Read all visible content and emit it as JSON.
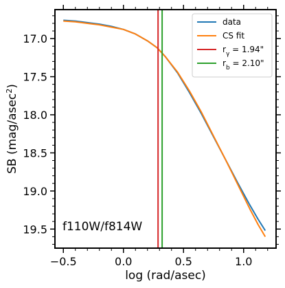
{
  "chart_data": {
    "type": "line",
    "title": "",
    "xlabel": "log (rad/asec)",
    "ylabel_main": "SB (mag/asec",
    "ylabel_sup": "2",
    "ylabel_close": ")",
    "xlim": [
      -0.57,
      1.27
    ],
    "ylim": [
      19.75,
      16.62
    ],
    "y_inverted": true,
    "grid": false,
    "legend_position": "top-right",
    "x_ticks": [
      -0.5,
      0.0,
      0.5,
      1.0
    ],
    "x_tick_labels": [
      "−0.5",
      "0.0",
      "0.5",
      "1.0"
    ],
    "y_ticks": [
      17.0,
      17.5,
      18.0,
      18.5,
      19.0,
      19.5
    ],
    "y_tick_labels": [
      "17.0",
      "17.5",
      "18.0",
      "18.5",
      "19.0",
      "19.5"
    ],
    "annotation": "f110W/f814W",
    "series": [
      {
        "name": "data",
        "color": "#1f77b4",
        "x": [
          -0.5,
          -0.4,
          -0.3,
          -0.2,
          -0.1,
          0.0,
          0.1,
          0.2,
          0.28,
          0.35,
          0.45,
          0.55,
          0.65,
          0.75,
          0.85,
          0.95,
          1.05,
          1.12,
          1.18
        ],
        "y": [
          16.76,
          16.77,
          16.79,
          16.81,
          16.84,
          16.88,
          16.94,
          17.03,
          17.12,
          17.24,
          17.45,
          17.71,
          17.99,
          18.29,
          18.59,
          18.89,
          19.18,
          19.37,
          19.52
        ]
      },
      {
        "name": "CS fit",
        "color": "#ff7f0e",
        "x": [
          -0.5,
          -0.4,
          -0.3,
          -0.2,
          -0.1,
          0.0,
          0.1,
          0.2,
          0.28,
          0.35,
          0.45,
          0.55,
          0.65,
          0.75,
          0.85,
          0.95,
          1.05,
          1.12,
          1.18
        ],
        "y": [
          16.77,
          16.78,
          16.8,
          16.82,
          16.85,
          16.88,
          16.94,
          17.03,
          17.12,
          17.24,
          17.44,
          17.69,
          17.97,
          18.28,
          18.59,
          18.91,
          19.23,
          19.44,
          19.6
        ]
      }
    ],
    "vlines": [
      {
        "name": "r_gamma",
        "label_prefix": "r",
        "label_sub": "γ",
        "label_value": " = 1.94\"",
        "x": 0.288,
        "color": "#d62728"
      },
      {
        "name": "r_b",
        "label_prefix": "r",
        "label_sub": "b",
        "label_value": " = 2.10\"",
        "x": 0.322,
        "color": "#2ca02c"
      }
    ]
  }
}
